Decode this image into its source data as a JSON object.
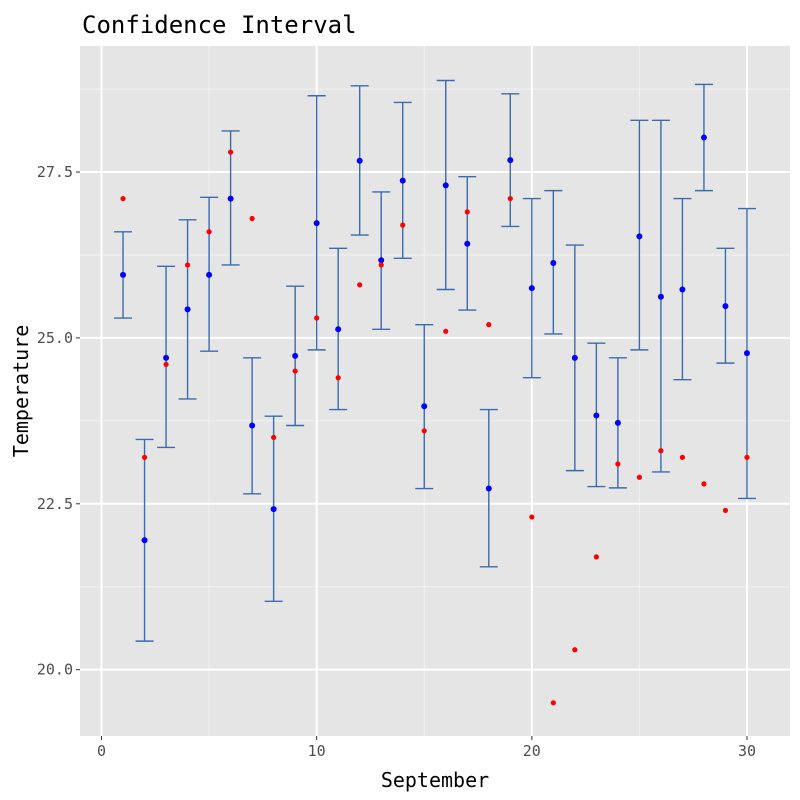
{
  "chart_data": {
    "type": "scatter",
    "title": "Confidence Interval",
    "xlabel": "September",
    "ylabel": "Temperature",
    "xlim": [
      -1,
      32
    ],
    "ylim": [
      19.0,
      29.4
    ],
    "x_ticks": [
      0,
      10,
      20,
      30
    ],
    "y_ticks": [
      20.0,
      22.5,
      25.0,
      27.5
    ],
    "x_tick_labels": [
      "0",
      "10",
      "20",
      "30"
    ],
    "y_tick_labels": [
      "20.0",
      "22.5",
      "25.0",
      "27.5"
    ],
    "grid": true,
    "colors": {
      "panel_bg": "#e5e5e5",
      "grid_major": "#ffffff",
      "grid_minor": "#f2f2f2",
      "errorbar": "#3a6bad",
      "mean_point": "#0000ff",
      "observed_point": "#ff0000"
    },
    "series": [
      {
        "type": "errorbar",
        "x": [
          1,
          2,
          3,
          4,
          5,
          6,
          7,
          8,
          9,
          10,
          11,
          12,
          13,
          14,
          15,
          16,
          17,
          18,
          19,
          20,
          21,
          22,
          23,
          24,
          25,
          26,
          27,
          28,
          29,
          30
        ],
        "mean": [
          25.95,
          21.95,
          24.7,
          25.43,
          25.95,
          27.1,
          23.68,
          22.42,
          24.73,
          26.73,
          25.13,
          27.67,
          26.17,
          27.37,
          23.97,
          27.3,
          26.42,
          22.73,
          27.68,
          25.75,
          26.13,
          24.7,
          23.83,
          23.72,
          26.53,
          25.62,
          25.73,
          28.02,
          25.48,
          24.77
        ],
        "lower": [
          25.3,
          20.43,
          23.35,
          24.08,
          24.8,
          26.1,
          22.65,
          21.03,
          23.68,
          24.82,
          23.92,
          26.55,
          25.13,
          26.2,
          22.73,
          25.73,
          25.42,
          21.55,
          26.68,
          24.4,
          25.06,
          23.0,
          22.76,
          22.74,
          24.82,
          22.98,
          24.37,
          27.22,
          24.62,
          22.58
        ],
        "upper": [
          26.6,
          23.47,
          26.08,
          26.78,
          27.12,
          28.12,
          24.7,
          23.82,
          25.78,
          28.65,
          26.35,
          28.8,
          27.2,
          28.55,
          25.2,
          28.88,
          27.43,
          23.92,
          28.68,
          27.1,
          27.22,
          26.4,
          24.92,
          24.7,
          28.28,
          28.28,
          27.1,
          28.82,
          26.35,
          26.95
        ]
      },
      {
        "type": "points",
        "x": [
          1,
          2,
          3,
          4,
          5,
          6,
          7,
          8,
          9,
          10,
          11,
          12,
          13,
          14,
          15,
          16,
          17,
          18,
          19,
          20,
          21,
          22,
          23,
          24,
          25,
          26,
          27,
          28,
          29,
          30
        ],
        "values": [
          27.1,
          23.2,
          24.6,
          26.1,
          26.6,
          27.8,
          26.8,
          23.5,
          24.5,
          25.3,
          24.4,
          25.8,
          26.1,
          26.7,
          23.6,
          25.1,
          26.9,
          25.2,
          27.1,
          22.3,
          19.5,
          20.3,
          21.7,
          23.1,
          22.9,
          23.3,
          23.2,
          22.8,
          22.4,
          23.2
        ]
      }
    ]
  }
}
